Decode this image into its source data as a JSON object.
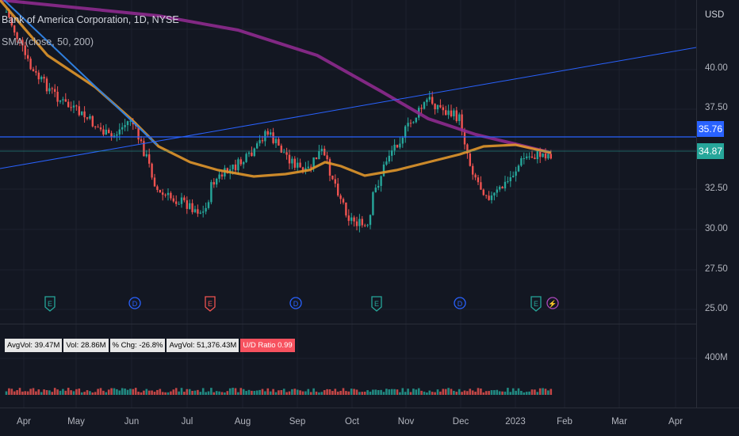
{
  "legend": {
    "title": "Bank of America Corporation, 1D, NYSE",
    "sma": "SMA (close, 50, 200)"
  },
  "price_axis": {
    "currency": "USD",
    "ticks": [
      "40.00",
      "37.50",
      "32.50",
      "30.00",
      "27.50",
      "25.00"
    ],
    "tick_values": [
      40.0,
      37.5,
      32.5,
      30.0,
      27.5,
      25.0
    ],
    "volume_tick": "400M",
    "badges": [
      {
        "label": "35.76",
        "value": 35.76,
        "color": "#2962ff"
      },
      {
        "label": "34.87",
        "value": 34.87,
        "color": "#26a69a"
      }
    ]
  },
  "time_axis": {
    "months": [
      "Apr",
      "May",
      "Jun",
      "Jul",
      "Aug",
      "Sep",
      "Oct",
      "Nov",
      "Dec",
      "2023",
      "Feb",
      "Mar",
      "Apr"
    ]
  },
  "stats": [
    {
      "label": "AvgVol: 39.47M",
      "tone": "neutral"
    },
    {
      "label": "Vol: 28.86M",
      "tone": "neutral"
    },
    {
      "label": "% Chg: -26.8%",
      "tone": "neutral"
    },
    {
      "label": "AvgVol: 51,376.43M",
      "tone": "neutral"
    },
    {
      "label": "U/D Ratio  0.99",
      "tone": "negative"
    }
  ],
  "event_markers": [
    {
      "letter": "E",
      "type": "earnings",
      "color": "#26a69a"
    },
    {
      "letter": "D",
      "type": "dividend",
      "color": "#2962ff"
    },
    {
      "letter": "E",
      "type": "earnings",
      "color": "#ef5350"
    },
    {
      "letter": "D",
      "type": "dividend",
      "color": "#2962ff"
    },
    {
      "letter": "E",
      "type": "earnings",
      "color": "#26a69a"
    },
    {
      "letter": "D",
      "type": "dividend",
      "color": "#2962ff"
    },
    {
      "letter": "E",
      "type": "earnings",
      "color": "#26a69a"
    },
    {
      "letter": "⚡",
      "type": "split-icon",
      "color": "#ab47bc"
    }
  ],
  "colors": {
    "up": "#26a69a",
    "down": "#ef5350",
    "sma50": "#e0962b",
    "sma200": "#8e2a8e",
    "trendline": "#2962ff"
  }
}
